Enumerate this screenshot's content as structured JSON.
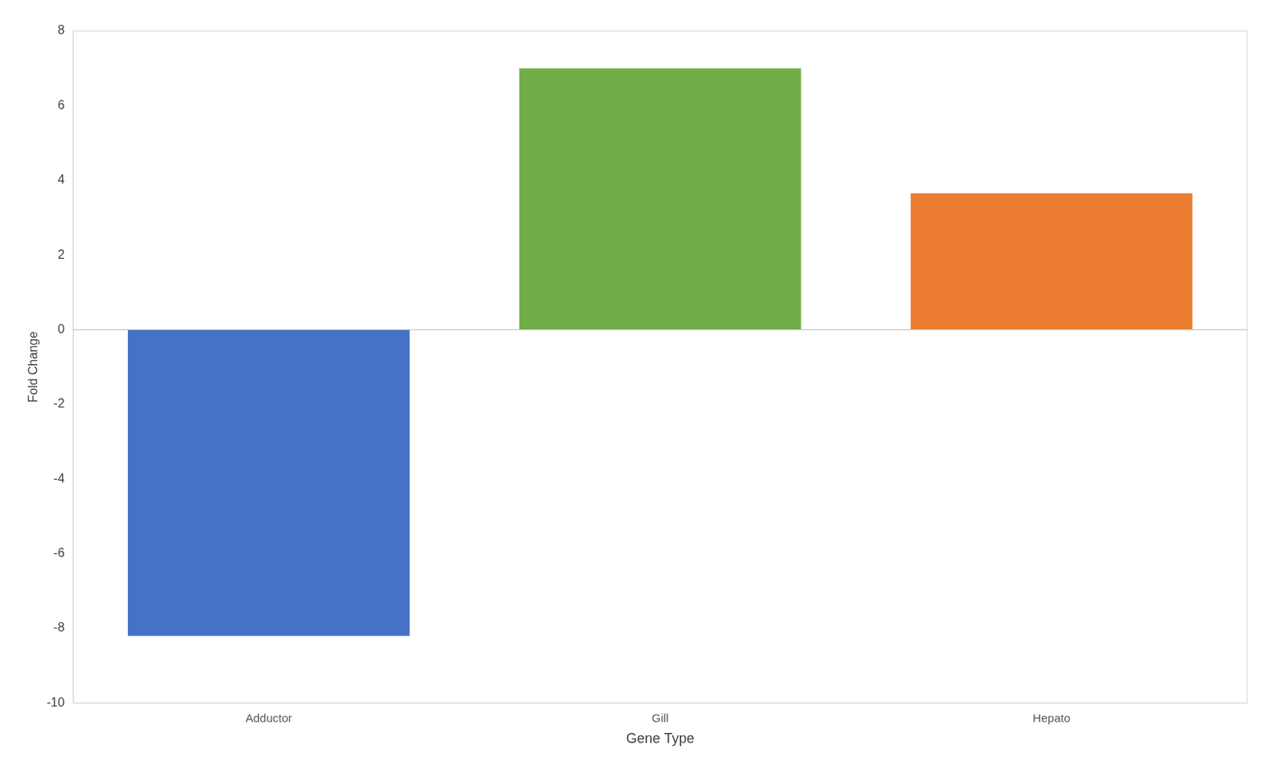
{
  "chart_data": {
    "type": "bar",
    "categories": [
      "Adductor",
      "Gill",
      "Hepato"
    ],
    "values": [
      -8.2,
      7.0,
      3.65
    ],
    "colors": [
      "#4472C4",
      "#70AD47",
      "#ED7D31"
    ],
    "xlabel": "Gene Type",
    "ylabel": "Fold Change",
    "ylim": [
      -10,
      8
    ],
    "yticks": [
      -10,
      -8,
      -6,
      -4,
      -2,
      0,
      2,
      4,
      6,
      8
    ],
    "grid": false
  }
}
